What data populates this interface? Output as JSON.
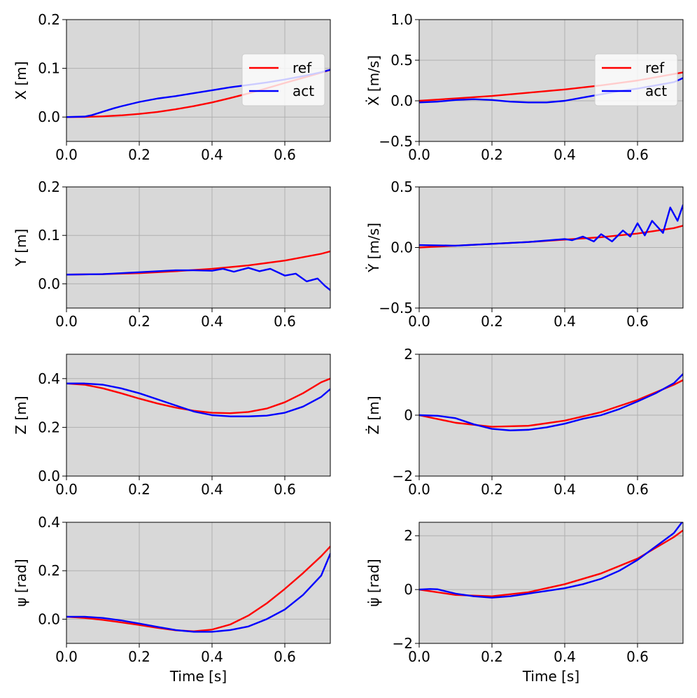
{
  "colors": {
    "ref": "#ff0000",
    "act": "#0000ff",
    "axes_bg": "#d8d8d8",
    "grid": "#b0b0b0"
  },
  "chart_data": [
    {
      "id": "x",
      "type": "line",
      "ylabel": "X [m]",
      "xlabel": "",
      "xlim": [
        0,
        0.725
      ],
      "ylim": [
        -0.05,
        0.2
      ],
      "xticks": [
        0.0,
        0.2,
        0.4,
        0.6
      ],
      "xtick_labels": [
        "0.0",
        "0.2",
        "0.4",
        "0.6"
      ],
      "yticks": [
        0.0,
        0.1,
        0.2
      ],
      "ytick_labels": [
        "0.0",
        "0.1",
        "0.2"
      ],
      "legend": {
        "position": "upper-right",
        "entries": [
          "ref",
          "act"
        ]
      },
      "series": [
        {
          "name": "ref",
          "x": [
            0,
            0.05,
            0.1,
            0.15,
            0.2,
            0.25,
            0.3,
            0.35,
            0.4,
            0.45,
            0.5,
            0.55,
            0.6,
            0.65,
            0.7,
            0.725
          ],
          "y": [
            0,
            0.0003,
            0.0015,
            0.0035,
            0.0065,
            0.0105,
            0.016,
            0.0225,
            0.03,
            0.039,
            0.0485,
            0.059,
            0.07,
            0.0805,
            0.091,
            0.097
          ]
        },
        {
          "name": "act",
          "x": [
            0,
            0.05,
            0.07,
            0.1,
            0.13,
            0.15,
            0.2,
            0.25,
            0.3,
            0.35,
            0.4,
            0.45,
            0.5,
            0.55,
            0.6,
            0.65,
            0.7,
            0.725
          ],
          "y": [
            0,
            0.001,
            0.004,
            0.011,
            0.018,
            0.022,
            0.031,
            0.038,
            0.043,
            0.049,
            0.055,
            0.061,
            0.066,
            0.071,
            0.077,
            0.084,
            0.092,
            0.097
          ]
        }
      ]
    },
    {
      "id": "xdot",
      "type": "line",
      "ylabel": "Ẋ [m/s]",
      "xlabel": "",
      "xlim": [
        0,
        0.725
      ],
      "ylim": [
        -0.5,
        1.0
      ],
      "xticks": [
        0.0,
        0.2,
        0.4,
        0.6
      ],
      "xtick_labels": [
        "0.0",
        "0.2",
        "0.4",
        "0.6"
      ],
      "yticks": [
        -0.5,
        0.0,
        0.5,
        1.0
      ],
      "ytick_labels": [
        "−0.5",
        "0.0",
        "0.5",
        "1.0"
      ],
      "legend": {
        "position": "upper-right",
        "entries": [
          "ref",
          "act"
        ]
      },
      "series": [
        {
          "name": "ref",
          "x": [
            0,
            0.1,
            0.2,
            0.3,
            0.4,
            0.5,
            0.6,
            0.7,
            0.725
          ],
          "y": [
            0.0,
            0.03,
            0.06,
            0.1,
            0.14,
            0.19,
            0.25,
            0.33,
            0.35
          ]
        },
        {
          "name": "act",
          "x": [
            0,
            0.05,
            0.1,
            0.15,
            0.2,
            0.25,
            0.3,
            0.35,
            0.4,
            0.45,
            0.5,
            0.55,
            0.6,
            0.65,
            0.7,
            0.725
          ],
          "y": [
            -0.02,
            -0.01,
            0.01,
            0.02,
            0.01,
            -0.01,
            -0.02,
            -0.02,
            0.0,
            0.04,
            0.08,
            0.12,
            0.15,
            0.19,
            0.23,
            0.28
          ]
        }
      ]
    },
    {
      "id": "y",
      "type": "line",
      "ylabel": "Y [m]",
      "xlabel": "",
      "xlim": [
        0,
        0.725
      ],
      "ylim": [
        -0.05,
        0.2
      ],
      "xticks": [
        0.0,
        0.2,
        0.4,
        0.6
      ],
      "xtick_labels": [
        "0.0",
        "0.2",
        "0.4",
        "0.6"
      ],
      "yticks": [
        0.0,
        0.1,
        0.2
      ],
      "ytick_labels": [
        "0.0",
        "0.1",
        "0.2"
      ],
      "series": [
        {
          "name": "ref",
          "x": [
            0,
            0.1,
            0.2,
            0.3,
            0.4,
            0.5,
            0.6,
            0.7,
            0.725
          ],
          "y": [
            0.019,
            0.02,
            0.022,
            0.026,
            0.031,
            0.038,
            0.048,
            0.062,
            0.067
          ]
        },
        {
          "name": "act",
          "x": [
            0,
            0.1,
            0.2,
            0.3,
            0.35,
            0.4,
            0.43,
            0.46,
            0.5,
            0.53,
            0.56,
            0.6,
            0.63,
            0.66,
            0.69,
            0.71,
            0.725
          ],
          "y": [
            0.019,
            0.02,
            0.024,
            0.028,
            0.028,
            0.027,
            0.031,
            0.025,
            0.033,
            0.026,
            0.031,
            0.017,
            0.021,
            0.005,
            0.011,
            -0.004,
            -0.013
          ]
        }
      ]
    },
    {
      "id": "ydot",
      "type": "line",
      "ylabel": "Ẏ [m/s]",
      "xlabel": "",
      "xlim": [
        0,
        0.725
      ],
      "ylim": [
        -0.5,
        0.5
      ],
      "xticks": [
        0.0,
        0.2,
        0.4,
        0.6
      ],
      "xtick_labels": [
        "0.0",
        "0.2",
        "0.4",
        "0.6"
      ],
      "yticks": [
        -0.5,
        0.0,
        0.5
      ],
      "ytick_labels": [
        "−0.5",
        "0.0",
        "0.5"
      ],
      "series": [
        {
          "name": "ref",
          "x": [
            0,
            0.1,
            0.2,
            0.3,
            0.4,
            0.5,
            0.6,
            0.7,
            0.725
          ],
          "y": [
            0.0,
            0.015,
            0.03,
            0.045,
            0.065,
            0.085,
            0.115,
            0.16,
            0.18
          ]
        },
        {
          "name": "act",
          "x": [
            0,
            0.1,
            0.2,
            0.3,
            0.4,
            0.42,
            0.45,
            0.48,
            0.5,
            0.53,
            0.56,
            0.58,
            0.6,
            0.62,
            0.64,
            0.67,
            0.69,
            0.71,
            0.725
          ],
          "y": [
            0.02,
            0.015,
            0.03,
            0.045,
            0.07,
            0.06,
            0.09,
            0.05,
            0.11,
            0.05,
            0.14,
            0.09,
            0.2,
            0.1,
            0.22,
            0.12,
            0.33,
            0.22,
            0.35
          ]
        }
      ]
    },
    {
      "id": "z",
      "type": "line",
      "ylabel": "Z [m]",
      "xlabel": "",
      "xlim": [
        0,
        0.725
      ],
      "ylim": [
        0.0,
        0.5
      ],
      "xticks": [
        0.0,
        0.2,
        0.4,
        0.6
      ],
      "xtick_labels": [
        "0.0",
        "0.2",
        "0.4",
        "0.6"
      ],
      "yticks": [
        0.0,
        0.2,
        0.4
      ],
      "ytick_labels": [
        "0.0",
        "0.2",
        "0.4"
      ],
      "series": [
        {
          "name": "ref",
          "x": [
            0,
            0.05,
            0.1,
            0.15,
            0.2,
            0.25,
            0.3,
            0.35,
            0.4,
            0.45,
            0.5,
            0.55,
            0.6,
            0.65,
            0.7,
            0.725
          ],
          "y": [
            0.38,
            0.375,
            0.36,
            0.34,
            0.318,
            0.298,
            0.281,
            0.268,
            0.26,
            0.258,
            0.263,
            0.277,
            0.303,
            0.34,
            0.385,
            0.4
          ]
        },
        {
          "name": "act",
          "x": [
            0,
            0.05,
            0.1,
            0.15,
            0.2,
            0.25,
            0.3,
            0.35,
            0.4,
            0.45,
            0.5,
            0.55,
            0.6,
            0.65,
            0.7,
            0.725
          ],
          "y": [
            0.38,
            0.38,
            0.375,
            0.36,
            0.34,
            0.315,
            0.29,
            0.265,
            0.25,
            0.245,
            0.245,
            0.248,
            0.26,
            0.285,
            0.325,
            0.357
          ]
        }
      ]
    },
    {
      "id": "zdot",
      "type": "line",
      "ylabel": "Ż [m]",
      "xlabel": "",
      "xlim": [
        0,
        0.725
      ],
      "ylim": [
        -2,
        2
      ],
      "xticks": [
        0.0,
        0.2,
        0.4,
        0.6
      ],
      "xtick_labels": [
        "0.0",
        "0.2",
        "0.4",
        "0.6"
      ],
      "yticks": [
        -2,
        0,
        2
      ],
      "ytick_labels": [
        "−2",
        "0",
        "2"
      ],
      "series": [
        {
          "name": "ref",
          "x": [
            0,
            0.1,
            0.2,
            0.3,
            0.4,
            0.5,
            0.6,
            0.7,
            0.725
          ],
          "y": [
            0.0,
            -0.25,
            -0.38,
            -0.35,
            -0.18,
            0.1,
            0.5,
            1.0,
            1.15
          ]
        },
        {
          "name": "act",
          "x": [
            0,
            0.05,
            0.1,
            0.15,
            0.2,
            0.25,
            0.3,
            0.35,
            0.4,
            0.45,
            0.5,
            0.55,
            0.6,
            0.65,
            0.7,
            0.725
          ],
          "y": [
            0.0,
            -0.02,
            -0.1,
            -0.3,
            -0.45,
            -0.5,
            -0.48,
            -0.4,
            -0.28,
            -0.12,
            0.0,
            0.2,
            0.45,
            0.72,
            1.05,
            1.35
          ]
        }
      ]
    },
    {
      "id": "psi",
      "type": "line",
      "ylabel": "ψ [rad]",
      "xlabel": "Time [s]",
      "xlim": [
        0,
        0.725
      ],
      "ylim": [
        -0.1,
        0.4
      ],
      "xticks": [
        0.0,
        0.2,
        0.4,
        0.6
      ],
      "xtick_labels": [
        "0.0",
        "0.2",
        "0.4",
        "0.6"
      ],
      "yticks": [
        0.0,
        0.2,
        0.4
      ],
      "ytick_labels": [
        "0.0",
        "0.2",
        "0.4"
      ],
      "series": [
        {
          "name": "ref",
          "x": [
            0,
            0.05,
            0.1,
            0.15,
            0.2,
            0.25,
            0.3,
            0.35,
            0.4,
            0.45,
            0.5,
            0.55,
            0.6,
            0.65,
            0.7,
            0.725
          ],
          "y": [
            0.01,
            0.005,
            -0.003,
            -0.013,
            -0.024,
            -0.036,
            -0.046,
            -0.05,
            -0.043,
            -0.022,
            0.015,
            0.065,
            0.125,
            0.19,
            0.26,
            0.3
          ]
        },
        {
          "name": "act",
          "x": [
            0,
            0.05,
            0.1,
            0.15,
            0.2,
            0.25,
            0.3,
            0.35,
            0.4,
            0.45,
            0.5,
            0.55,
            0.6,
            0.65,
            0.7,
            0.725
          ],
          "y": [
            0.01,
            0.01,
            0.005,
            -0.005,
            -0.018,
            -0.032,
            -0.045,
            -0.052,
            -0.052,
            -0.045,
            -0.03,
            0.0,
            0.04,
            0.1,
            0.18,
            0.27
          ]
        }
      ]
    },
    {
      "id": "psidot",
      "type": "line",
      "ylabel": "ψ̇ [rad]",
      "xlabel": "Time [s]",
      "xlim": [
        0,
        0.725
      ],
      "ylim": [
        -2,
        2.5
      ],
      "xticks": [
        0.0,
        0.2,
        0.4,
        0.6
      ],
      "xtick_labels": [
        "0.0",
        "0.2",
        "0.4",
        "0.6"
      ],
      "yticks": [
        -2,
        0,
        2
      ],
      "ytick_labels": [
        "−2",
        "0",
        "2"
      ],
      "series": [
        {
          "name": "ref",
          "x": [
            0,
            0.1,
            0.2,
            0.3,
            0.4,
            0.5,
            0.6,
            0.7,
            0.725
          ],
          "y": [
            0.0,
            -0.2,
            -0.25,
            -0.1,
            0.2,
            0.6,
            1.15,
            1.95,
            2.2
          ]
        },
        {
          "name": "act",
          "x": [
            0,
            0.03,
            0.05,
            0.1,
            0.15,
            0.2,
            0.25,
            0.3,
            0.35,
            0.4,
            0.45,
            0.5,
            0.55,
            0.6,
            0.65,
            0.7,
            0.725
          ],
          "y": [
            0.0,
            0.02,
            0.01,
            -0.15,
            -0.25,
            -0.3,
            -0.25,
            -0.15,
            -0.05,
            0.05,
            0.2,
            0.4,
            0.7,
            1.1,
            1.6,
            2.1,
            2.55
          ]
        }
      ]
    }
  ]
}
